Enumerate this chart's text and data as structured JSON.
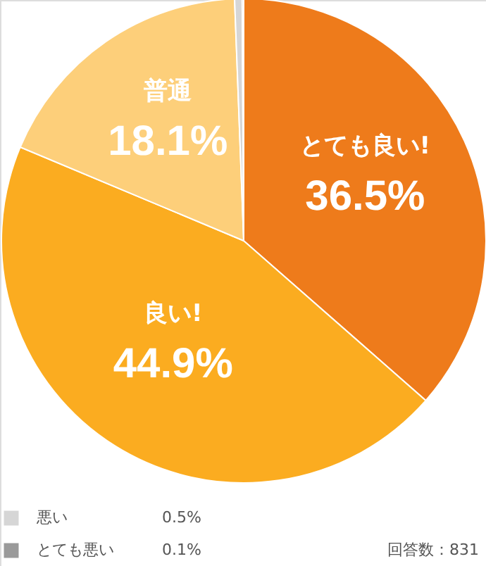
{
  "chart_data": {
    "type": "pie",
    "categories": [
      "とても良い!",
      "良い!",
      "普通",
      "悪い",
      "とても悪い"
    ],
    "values": [
      36.5,
      44.9,
      18.1,
      0.5,
      0.1
    ],
    "colors": [
      "#ee7b1b",
      "#fbac20",
      "#fdcf7a",
      "#d6d6d6",
      "#9a9a9a"
    ],
    "value_labels": [
      "36.5%",
      "44.9%",
      "18.1%",
      "0.5%",
      "0.1%"
    ],
    "legend": "bottom left",
    "annotations": [
      "回答数：831"
    ]
  }
}
